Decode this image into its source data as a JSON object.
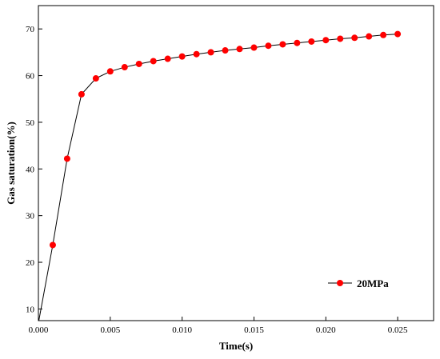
{
  "chart_data": {
    "type": "line",
    "title": "",
    "xlabel": "Time(s)",
    "ylabel": "Gas saturation(%)",
    "xlim": [
      0.0,
      0.0275
    ],
    "ylim": [
      7.5,
      75
    ],
    "x_ticks": [
      "0.000",
      "0.005",
      "0.010",
      "0.015",
      "0.020",
      "0.025"
    ],
    "y_ticks": [
      "10",
      "20",
      "30",
      "40",
      "50",
      "60",
      "70"
    ],
    "grid": false,
    "legend_position": "bottom-right",
    "series": [
      {
        "name": "20MPa",
        "color": "#ff0000",
        "line_color": "#000000",
        "marker": "circle",
        "x": [
          0.0,
          0.001,
          0.002,
          0.003,
          0.004,
          0.005,
          0.006,
          0.007,
          0.008,
          0.009,
          0.01,
          0.011,
          0.012,
          0.013,
          0.014,
          0.015,
          0.016,
          0.017,
          0.018,
          0.019,
          0.02,
          0.021,
          0.022,
          0.023,
          0.024,
          0.025
        ],
        "y": [
          7.0,
          23.7,
          42.2,
          56.0,
          59.4,
          60.9,
          61.8,
          62.5,
          63.1,
          63.6,
          64.1,
          64.6,
          65.0,
          65.4,
          65.7,
          66.0,
          66.4,
          66.7,
          67.0,
          67.3,
          67.6,
          67.9,
          68.1,
          68.4,
          68.7,
          68.9
        ],
        "markers_from_index": 1
      }
    ]
  }
}
